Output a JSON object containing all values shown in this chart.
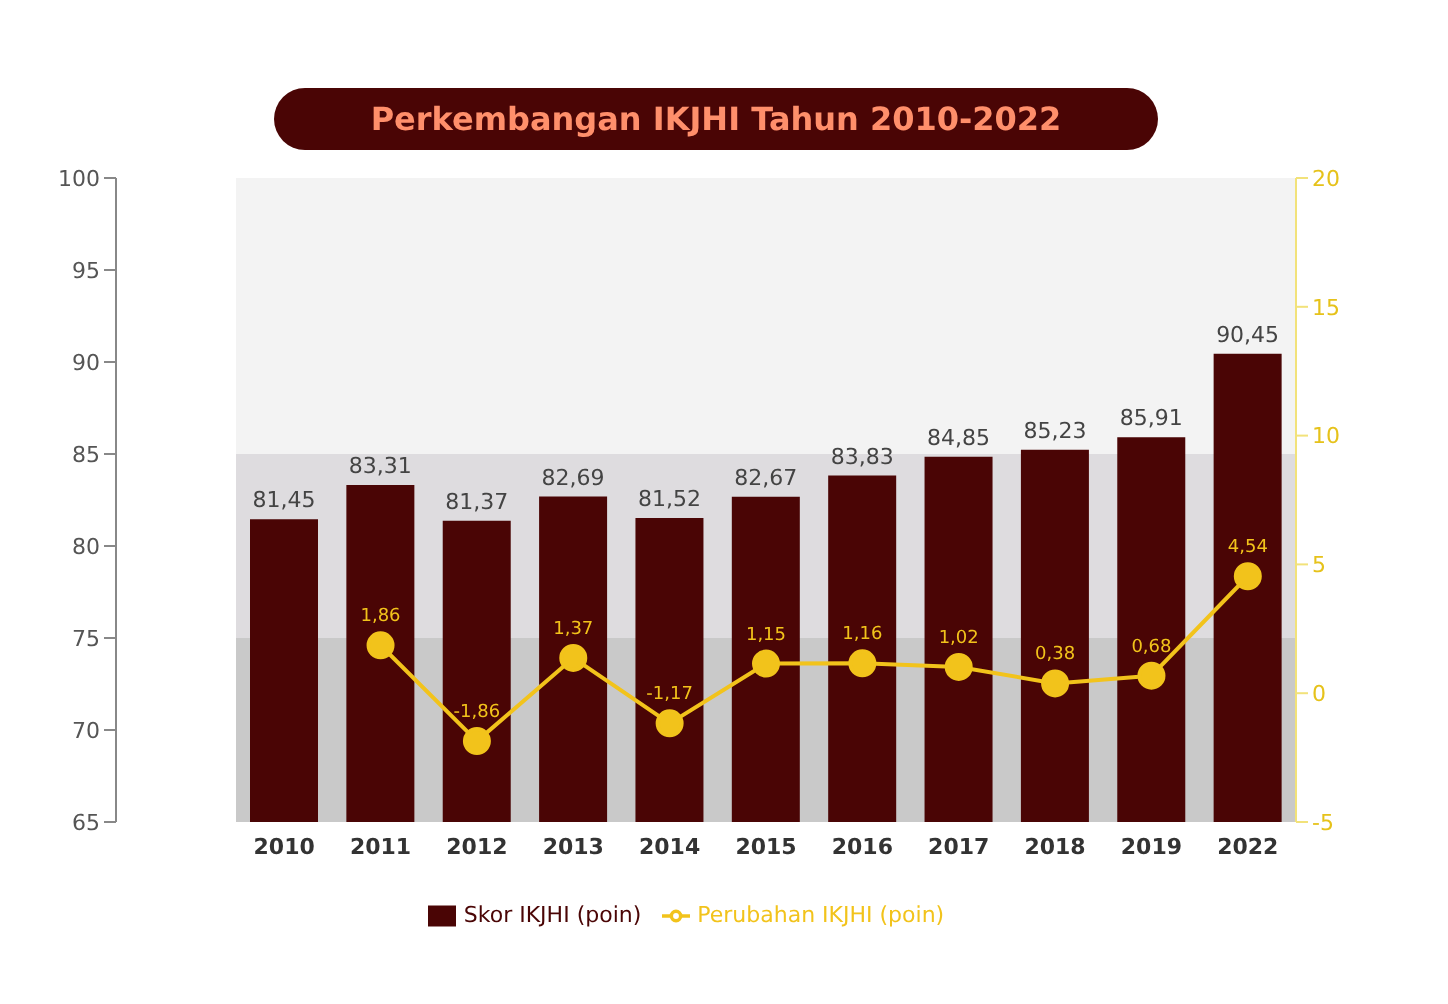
{
  "chart_data": {
    "type": "bar",
    "title": "Perkembangan IKJHI Tahun 2010-2022",
    "categories": [
      "2010",
      "2011",
      "2012",
      "2013",
      "2014",
      "2015",
      "2016",
      "2017",
      "2018",
      "2019",
      "2022"
    ],
    "series": [
      {
        "name": "Skor IKJHI (poin)",
        "color": "#4a0505",
        "values": [
          81.45,
          83.31,
          81.37,
          82.69,
          81.52,
          82.67,
          83.83,
          84.85,
          85.23,
          85.91,
          90.45
        ],
        "value_labels": [
          "81,45",
          "83,31",
          "81,37",
          "82,69",
          "81,52",
          "82,67",
          "83,83",
          "84,85",
          "85,23",
          "85,91",
          "90,45"
        ]
      },
      {
        "name": "Perubahan IKJHI (poin)",
        "type": "line",
        "axis": "y2",
        "color": "#f2c31b",
        "values": [
          null,
          1.86,
          -1.86,
          1.37,
          -1.17,
          1.15,
          1.16,
          1.02,
          0.38,
          0.68,
          4.54
        ],
        "value_labels": [
          null,
          "1,86",
          "-1,86",
          "1,37",
          "-1,17",
          "1,15",
          "1,16",
          "1,02",
          "0,38",
          "0,68",
          "4,54"
        ]
      }
    ],
    "ylim": [
      65,
      100
    ],
    "yticks": [
      65,
      70,
      75,
      80,
      85,
      90,
      95,
      100
    ],
    "y2lim": [
      -5,
      20
    ],
    "y2ticks": [
      -5,
      0,
      5,
      10,
      15,
      20
    ],
    "bands": [
      {
        "axis": "y",
        "from": 65,
        "to": 75,
        "color": "#c9c9c9"
      },
      {
        "axis": "y",
        "from": 75,
        "to": 85,
        "color": "#dedcdf"
      },
      {
        "axis": "y",
        "from": 85,
        "to": 100,
        "color": "#f3f3f3"
      }
    ],
    "marker": "circle",
    "grid": false,
    "legend": "bottom"
  }
}
